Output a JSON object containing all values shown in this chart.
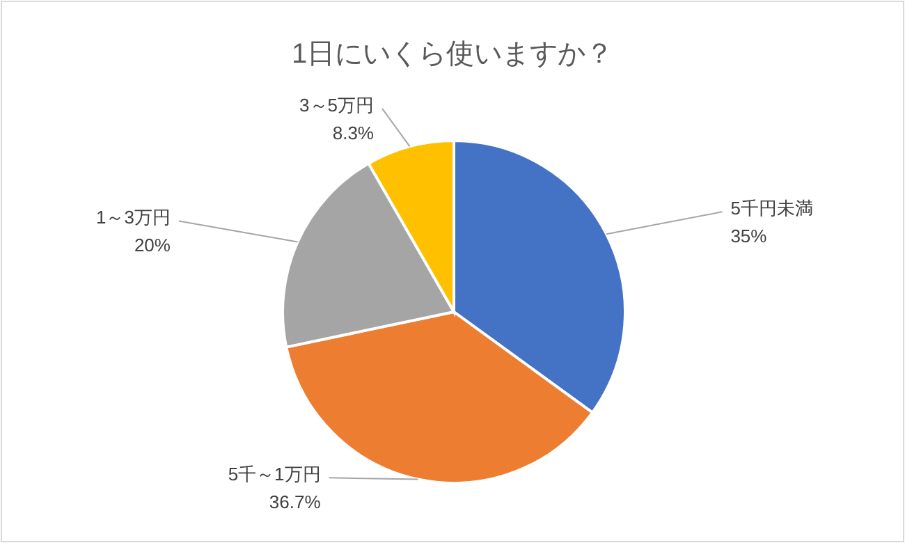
{
  "chart_data": {
    "type": "pie",
    "title": "1日にいくら使いますか？",
    "categories": [
      "5千円未満",
      "5千～1万円",
      "1～3万円",
      "3～5万円"
    ],
    "values": [
      35,
      36.7,
      20,
      8.3
    ],
    "colors": [
      "#4472c4",
      "#ed7d31",
      "#a5a5a5",
      "#ffc000"
    ],
    "value_labels": [
      "35%",
      "36.7%",
      "20%",
      "8.3%"
    ]
  }
}
